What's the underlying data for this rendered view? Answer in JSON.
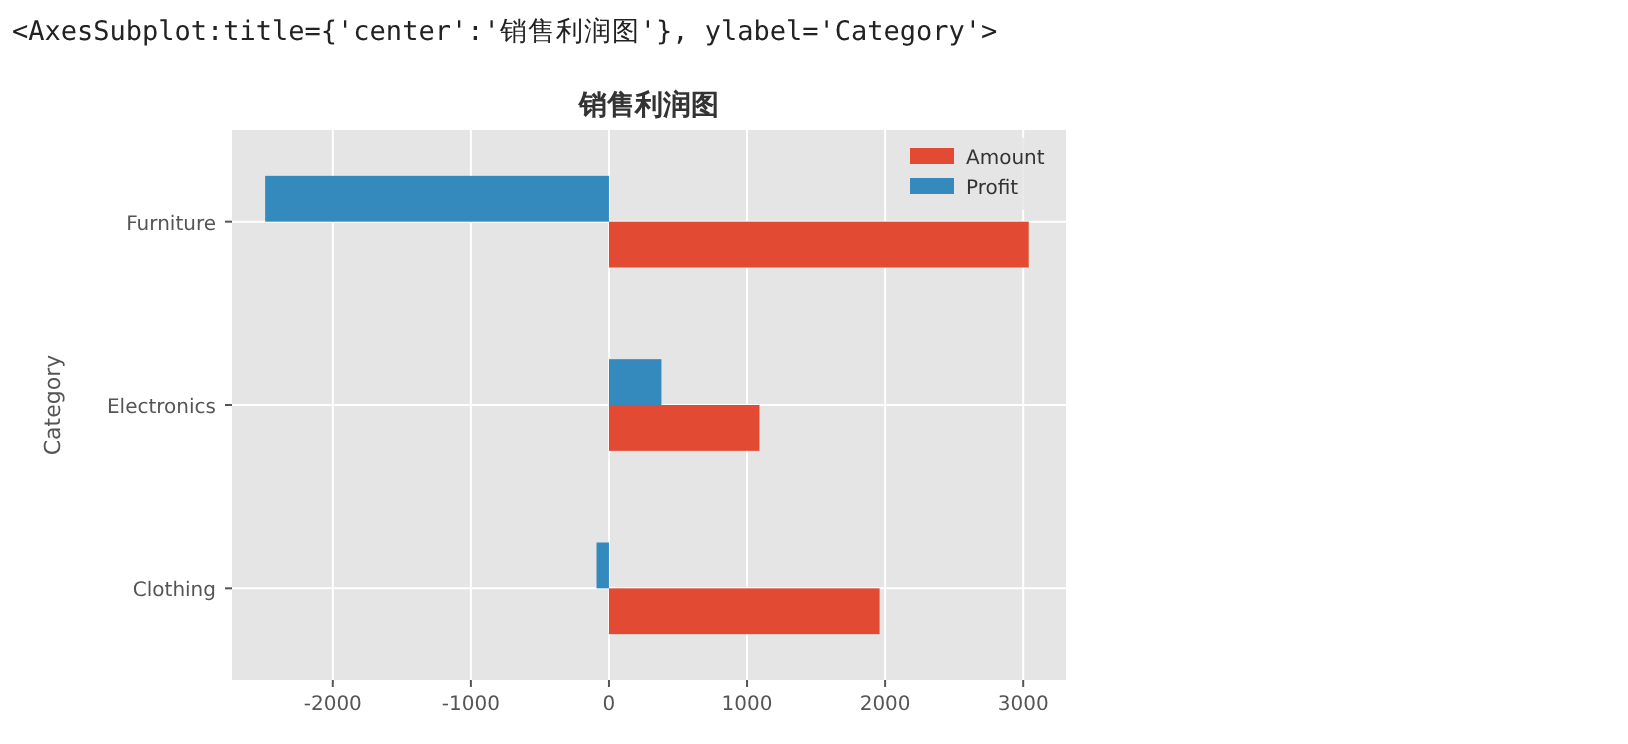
{
  "chart_data": {
    "type": "bar",
    "orientation": "horizontal",
    "title": "销售利润图",
    "ylabel": "Category",
    "annotations": [
      "<AxesSubplot:title={'center':'销售利润图'}, ylabel='Category'>"
    ],
    "categories": [
      "Furniture",
      "Electronics",
      "Clothing"
    ],
    "series": [
      {
        "name": "Amount",
        "color": "#e24a33",
        "values": [
          3040,
          1090,
          1960
        ]
      },
      {
        "name": "Profit",
        "color": "#348abd",
        "values": [
          -2490,
          380,
          -90
        ]
      }
    ],
    "xlim": [
      -2730,
      3310
    ],
    "xticks": [
      -2000,
      -1000,
      0,
      1000,
      2000,
      3000
    ],
    "grid": true,
    "legend": "top right"
  }
}
